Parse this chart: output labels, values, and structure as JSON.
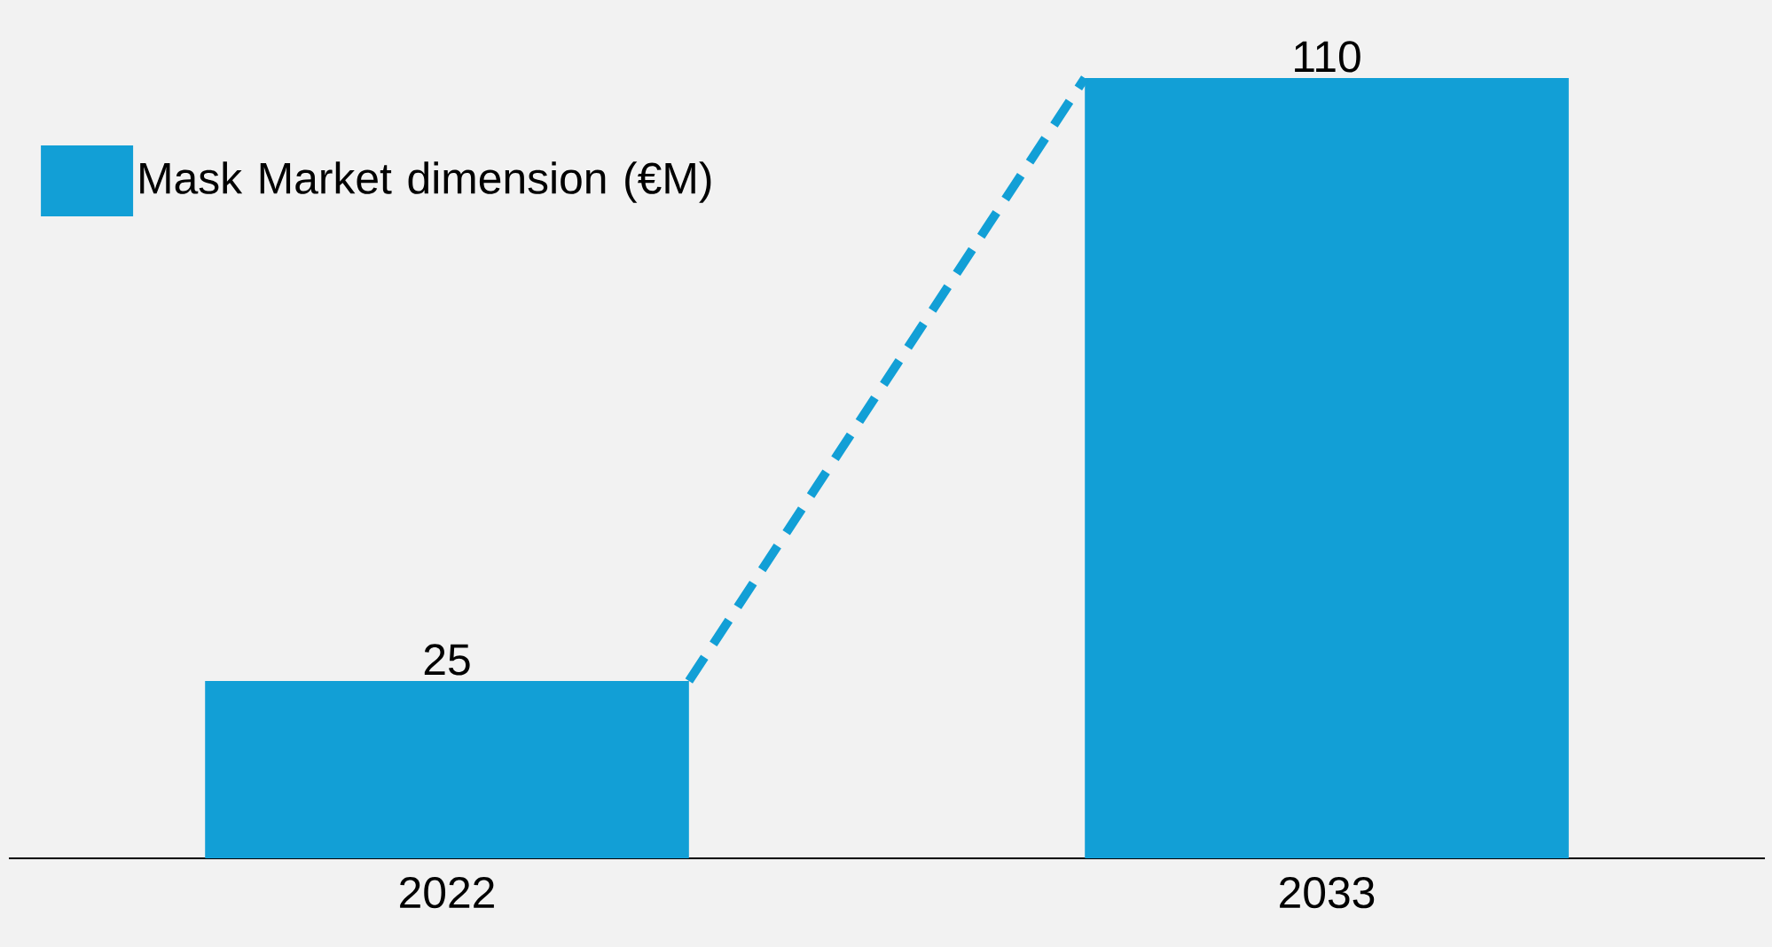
{
  "chart_data": {
    "type": "bar",
    "categories": [
      "2022",
      "2033"
    ],
    "series": [
      {
        "name": "Mask Market dimension (€M)",
        "color": "#129fd6",
        "values": [
          25,
          110
        ]
      }
    ],
    "data_labels": true,
    "legend": "top left"
  }
}
